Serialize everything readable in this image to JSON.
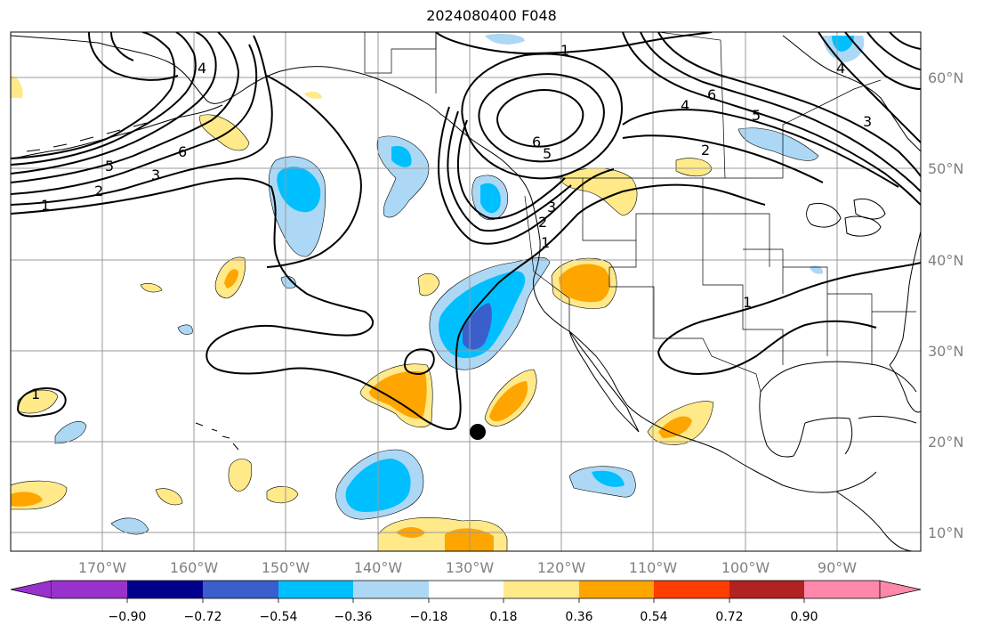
{
  "title": "2024080400 F048",
  "longitude_labels": [
    "170°W",
    "160°W",
    "150°W",
    "140°W",
    "130°W",
    "120°W",
    "110°W",
    "100°W",
    "90°W"
  ],
  "latitude_labels": [
    "60°N",
    "50°N",
    "40°N",
    "30°N",
    "20°N",
    "10°N"
  ],
  "colorbar": {
    "ticks": [
      "−0.90",
      "−0.72",
      "−0.54",
      "−0.36",
      "−0.18",
      "0.18",
      "0.36",
      "0.54",
      "0.72",
      "0.90"
    ],
    "colors": [
      "#9932cc",
      "#00008b",
      "#3a5fcd",
      "#00bfff",
      "#add8f5",
      "#ffffff",
      "#ffe989",
      "#ffa500",
      "#ff3d00",
      "#b22222",
      "#ff88aa"
    ]
  },
  "contour_labels": [
    "1",
    "2",
    "3",
    "4",
    "5",
    "6"
  ],
  "shading_colors": {
    "light_blue": "#add8f5",
    "blue": "#00bfff",
    "dark_blue": "#3a5fcd",
    "yellow": "#ffe989",
    "orange": "#ffa500",
    "red": "#ff3d00"
  }
}
